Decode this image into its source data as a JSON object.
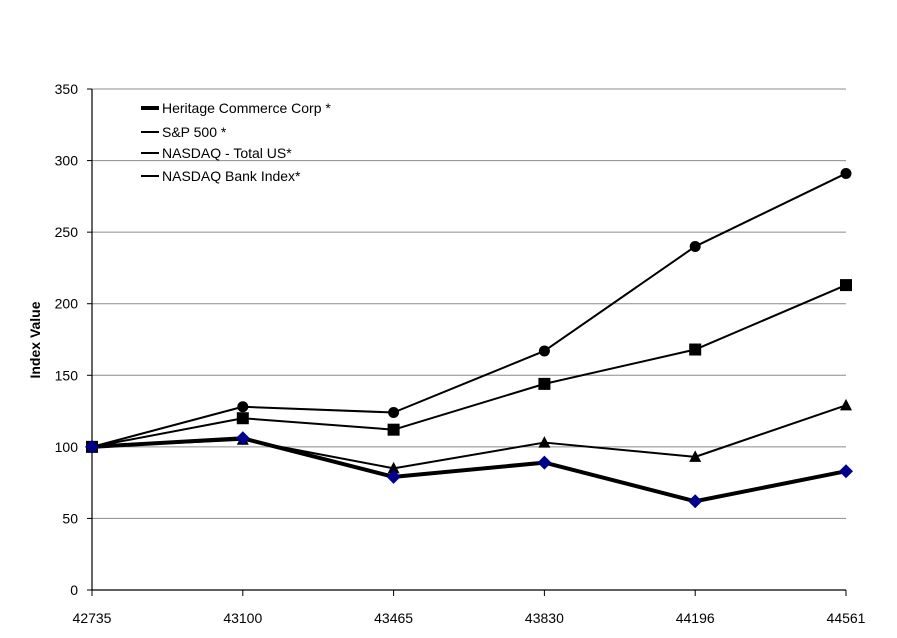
{
  "chart_data": {
    "type": "line",
    "ylabel": "Index Value",
    "xlabel": "",
    "x": [
      "42735",
      "43100",
      "43465",
      "43830",
      "44196",
      "44561"
    ],
    "ylim": [
      0,
      350
    ],
    "yticks": [
      "0",
      "50",
      "100",
      "150",
      "200",
      "250",
      "300",
      "350"
    ],
    "grid": true,
    "legend_position": "top-left",
    "series": [
      {
        "name": "Heritage Commerce Corp *",
        "values": [
          100,
          106,
          79,
          89,
          62,
          83
        ],
        "marker": "diamond",
        "color": "#000000",
        "marker_color": "#00008b"
      },
      {
        "name": "S&P 500 *",
        "values": [
          100,
          120,
          112,
          144,
          168,
          213
        ],
        "marker": "square",
        "color": "#000000",
        "marker_color": "#000000"
      },
      {
        "name": "NASDAQ - Total US*",
        "values": [
          100,
          128,
          124,
          167,
          240,
          291
        ],
        "marker": "circle",
        "color": "#000000",
        "marker_color": "#000000"
      },
      {
        "name": "NASDAQ Bank Index*",
        "values": [
          100,
          105,
          85,
          103,
          93,
          129
        ],
        "marker": "triangle",
        "color": "#000000",
        "marker_color": "#000000"
      }
    ]
  }
}
